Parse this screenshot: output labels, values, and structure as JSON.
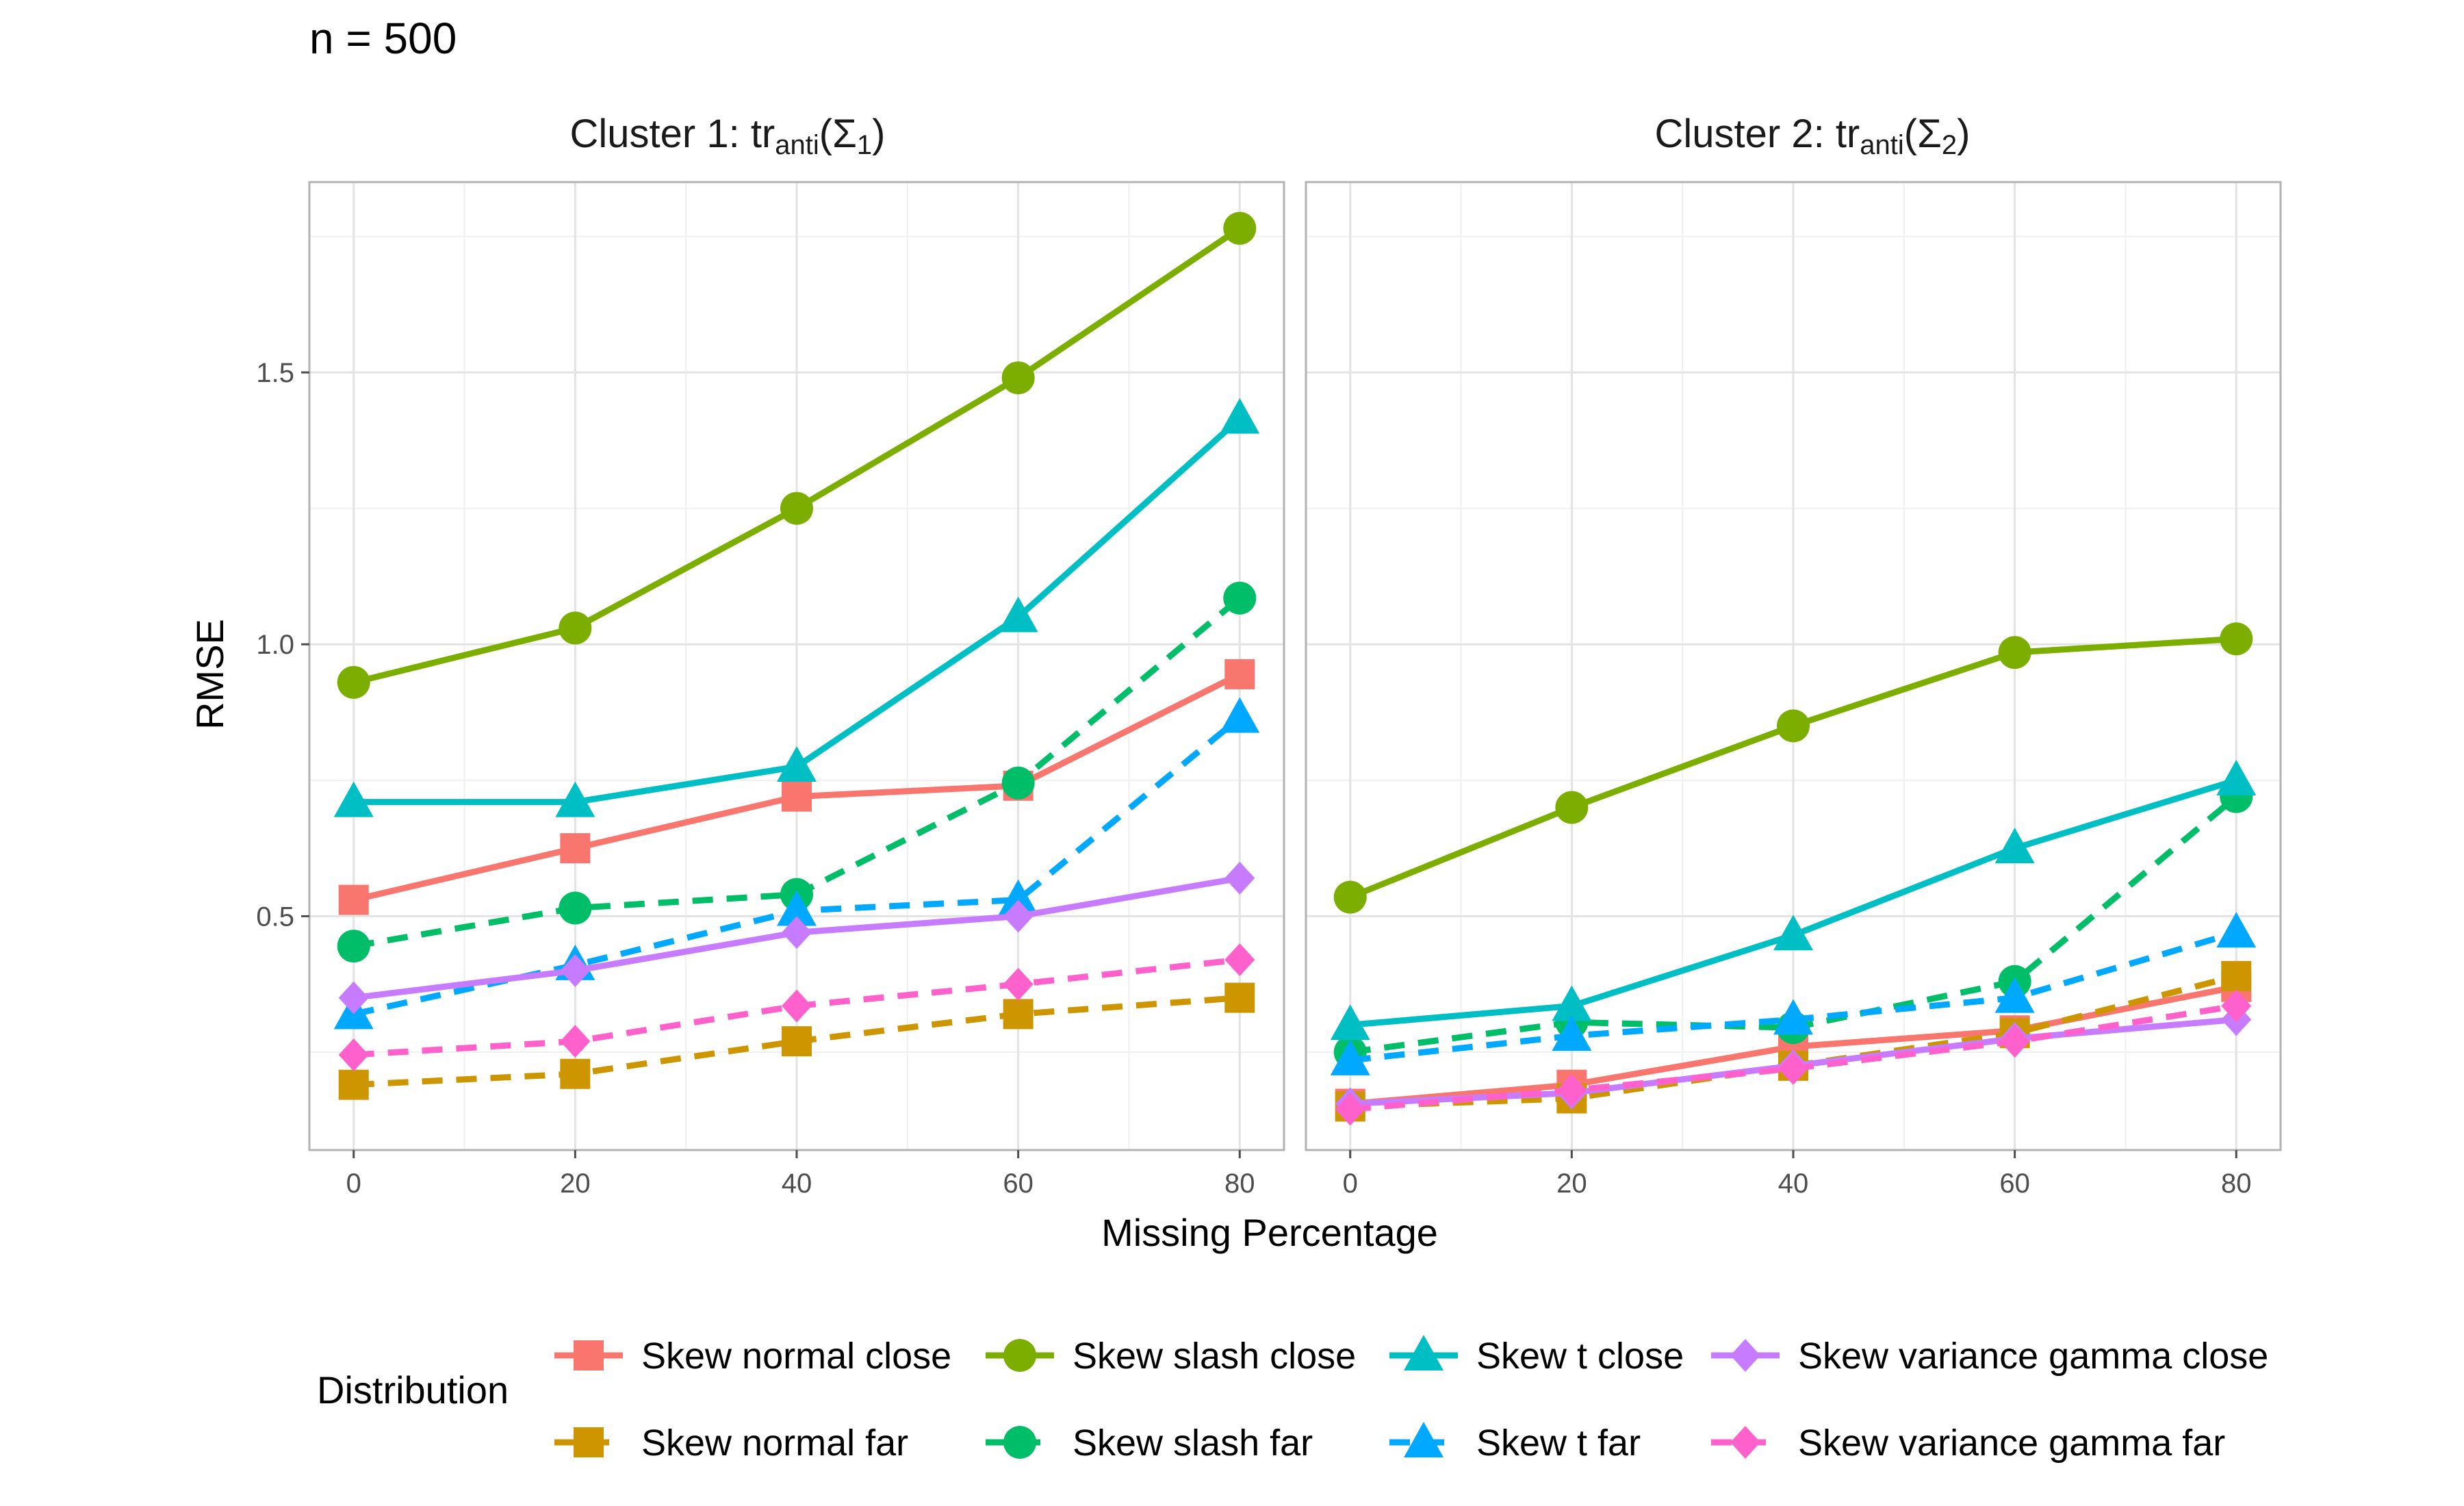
{
  "figure_title": "n = 500",
  "chart_data": {
    "type": "line",
    "xlabel": "Missing Percentage",
    "ylabel": "RMSE",
    "x": [
      0,
      20,
      40,
      60,
      80
    ],
    "xlim": [
      -4,
      84
    ],
    "ylim": [
      0.07,
      1.85
    ],
    "x_ticks": [
      0,
      20,
      40,
      60,
      80
    ],
    "y_ticks": [
      0.5,
      1.0,
      1.5
    ],
    "y_tick_labels": [
      "0.5",
      "1.0",
      "1.5"
    ],
    "grid": true,
    "legend": {
      "title": "Distribution",
      "placement": "bottom",
      "entries": [
        {
          "name": "Skew normal close",
          "color": "#F8766D",
          "linetype": "solid",
          "shape": "square"
        },
        {
          "name": "Skew normal far",
          "color": "#CD9600",
          "linetype": "dashed",
          "shape": "square"
        },
        {
          "name": "Skew slash close",
          "color": "#7CAE00",
          "linetype": "solid",
          "shape": "circle"
        },
        {
          "name": "Skew slash far",
          "color": "#00BE67",
          "linetype": "dashed",
          "shape": "circle"
        },
        {
          "name": "Skew t close",
          "color": "#00BFC4",
          "linetype": "solid",
          "shape": "triangle"
        },
        {
          "name": "Skew t far",
          "color": "#00A9FF",
          "linetype": "dashed",
          "shape": "triangle"
        },
        {
          "name": "Skew variance gamma close",
          "color": "#C77CFF",
          "linetype": "solid",
          "shape": "diamond"
        },
        {
          "name": "Skew variance gamma far",
          "color": "#FF61CC",
          "linetype": "dashed",
          "shape": "diamond"
        }
      ]
    },
    "panels": [
      {
        "title_prefix": "Cluster 1: tr",
        "title_sub": "anti",
        "title_sigma": "(Σ",
        "title_index": "1",
        "title_close": ")",
        "series": [
          {
            "name": "Skew normal close",
            "values": [
              0.53,
              0.625,
              0.72,
              0.74,
              0.945
            ]
          },
          {
            "name": "Skew normal far",
            "values": [
              0.19,
              0.21,
              0.27,
              0.32,
              0.35
            ]
          },
          {
            "name": "Skew slash close",
            "values": [
              0.93,
              1.03,
              1.25,
              1.49,
              1.765
            ]
          },
          {
            "name": "Skew slash far",
            "values": [
              0.445,
              0.515,
              0.54,
              0.745,
              1.085
            ]
          },
          {
            "name": "Skew t close",
            "values": [
              0.71,
              0.71,
              0.775,
              1.05,
              1.415
            ]
          },
          {
            "name": "Skew t far",
            "values": [
              0.32,
              0.41,
              0.51,
              0.53,
              0.865
            ]
          },
          {
            "name": "Skew variance gamma close",
            "values": [
              0.35,
              0.4,
              0.47,
              0.5,
              0.57
            ]
          },
          {
            "name": "Skew variance gamma far",
            "values": [
              0.245,
              0.27,
              0.335,
              0.375,
              0.42
            ]
          }
        ]
      },
      {
        "title_prefix": "Cluster 2: tr",
        "title_sub": "anti",
        "title_sigma": "(Σ",
        "title_index": "2",
        "title_close": ")",
        "series": [
          {
            "name": "Skew normal close",
            "values": [
              0.155,
              0.19,
              0.26,
              0.29,
              0.37
            ]
          },
          {
            "name": "Skew normal far",
            "values": [
              0.15,
              0.165,
              0.225,
              0.285,
              0.39
            ]
          },
          {
            "name": "Skew slash close",
            "values": [
              0.535,
              0.7,
              0.85,
              0.985,
              1.01
            ]
          },
          {
            "name": "Skew slash far",
            "values": [
              0.25,
              0.305,
              0.295,
              0.38,
              0.72
            ]
          },
          {
            "name": "Skew t close",
            "values": [
              0.3,
              0.335,
              0.465,
              0.625,
              0.75
            ]
          },
          {
            "name": "Skew t far",
            "values": [
              0.235,
              0.28,
              0.31,
              0.35,
              0.47
            ]
          },
          {
            "name": "Skew variance gamma close",
            "values": [
              0.155,
              0.175,
              0.225,
              0.275,
              0.31
            ]
          },
          {
            "name": "Skew variance gamma far",
            "values": [
              0.145,
              0.18,
              0.22,
              0.27,
              0.335
            ]
          }
        ]
      }
    ]
  }
}
